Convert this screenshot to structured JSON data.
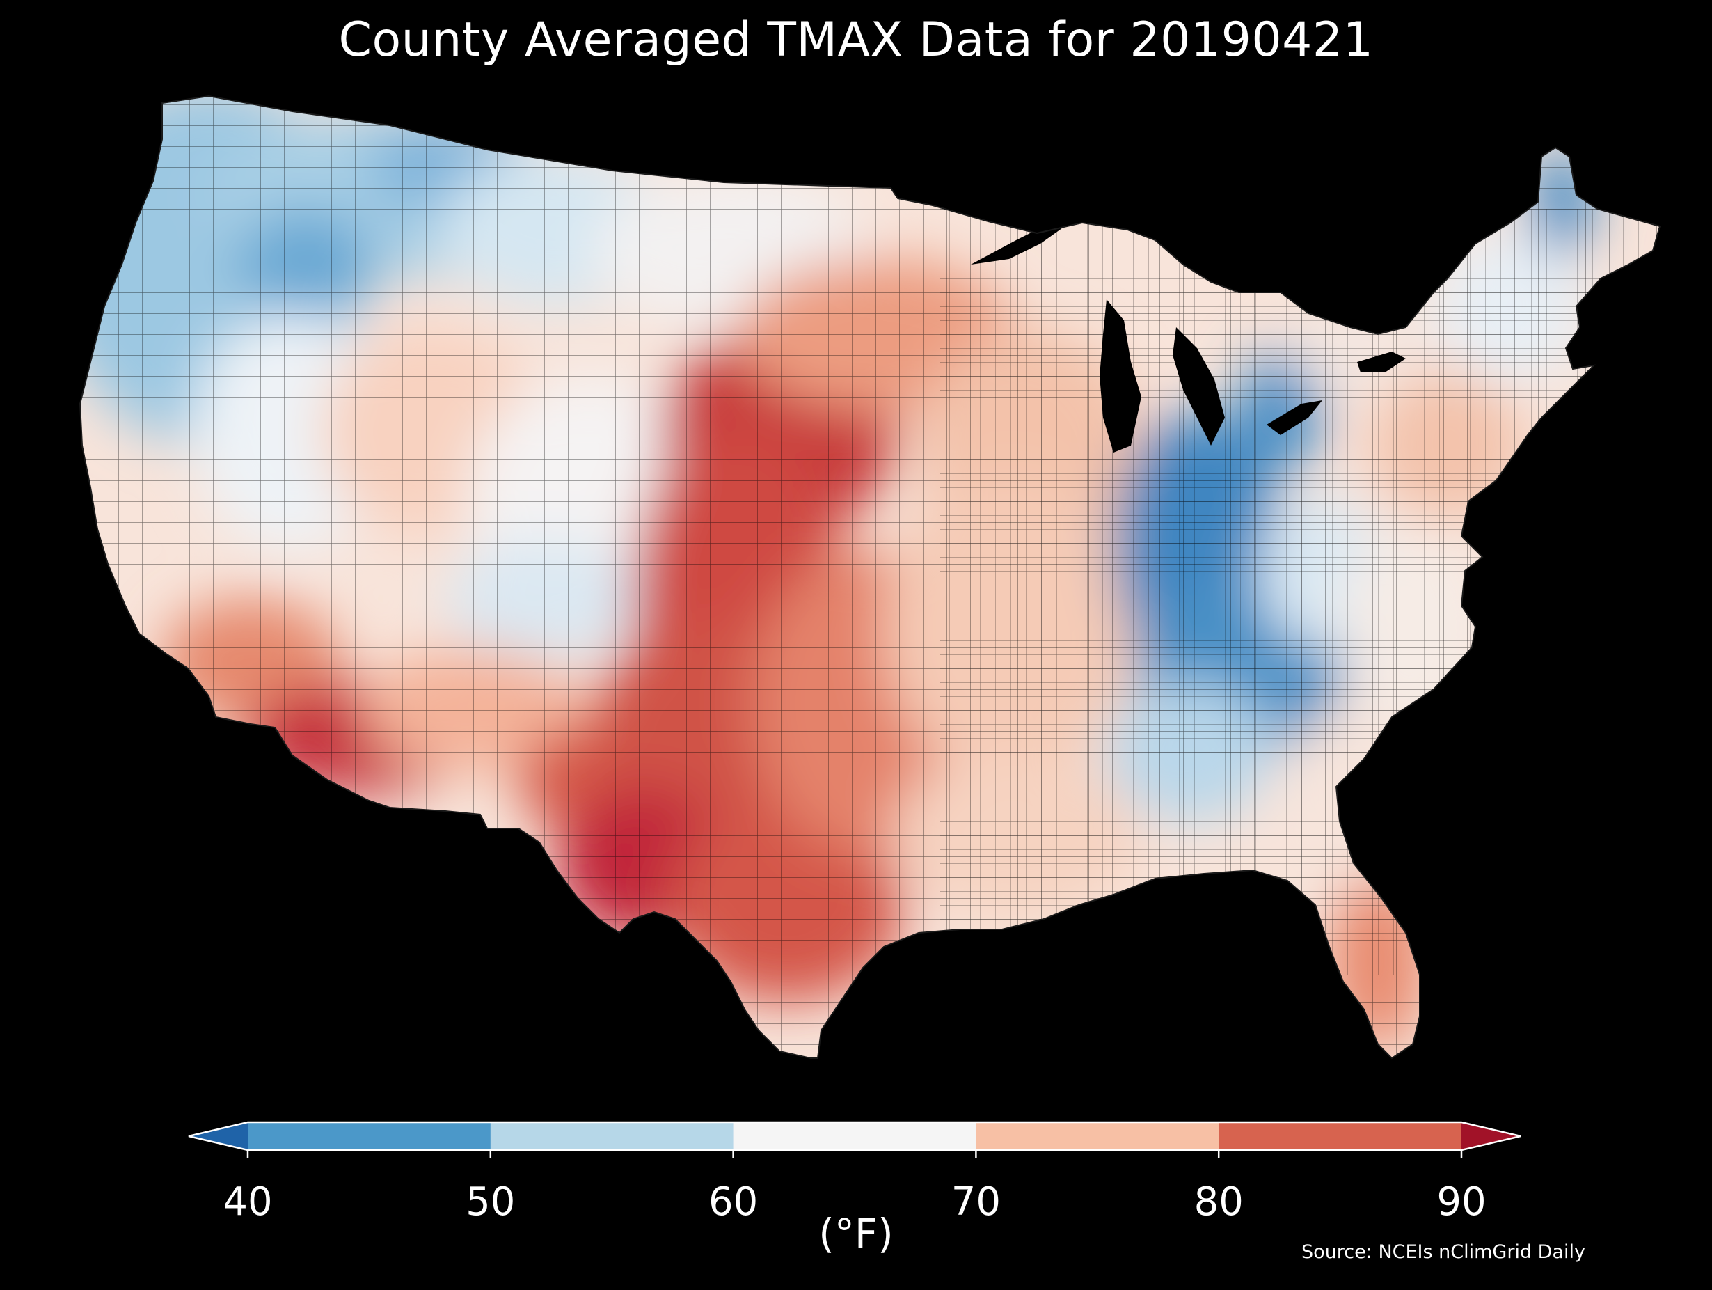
{
  "title": "County Averaged TMAX Data for 20190421",
  "colorbar": {
    "ticks": [
      "40",
      "50",
      "60",
      "70",
      "80",
      "90"
    ],
    "unit_label": "(°F)",
    "extend": "both",
    "bins": [
      {
        "from": 40,
        "to": 50,
        "color": "#4b98c9"
      },
      {
        "from": 50,
        "to": 60,
        "color": "#b6d7e8"
      },
      {
        "from": 60,
        "to": 70,
        "color": "#f5f5f5"
      },
      {
        "from": 70,
        "to": 80,
        "color": "#f7c0a5"
      },
      {
        "from": 80,
        "to": 90,
        "color": "#d7634f"
      }
    ],
    "under_color": "#1f63a8",
    "over_color": "#a11228"
  },
  "source": "Source: NCEIs nClimGrid Daily",
  "background_color": "#000000",
  "regions": [
    {
      "name": "pacific-northwest-coast",
      "band": "50-60"
    },
    {
      "name": "northern-rockies",
      "band": "40-50"
    },
    {
      "name": "great-basin",
      "band": "60-70"
    },
    {
      "name": "desert-southwest",
      "band": "80-90+"
    },
    {
      "name": "central-plains",
      "band": "80-90"
    },
    {
      "name": "texas",
      "band": "80-90"
    },
    {
      "name": "midwest",
      "band": "70-80"
    },
    {
      "name": "ohio-valley-appalachia",
      "band": "40-50"
    },
    {
      "name": "southeast",
      "band": "70-80"
    },
    {
      "name": "northeast",
      "band": "60-70"
    },
    {
      "name": "northern-maine",
      "band": "40-50"
    }
  ]
}
